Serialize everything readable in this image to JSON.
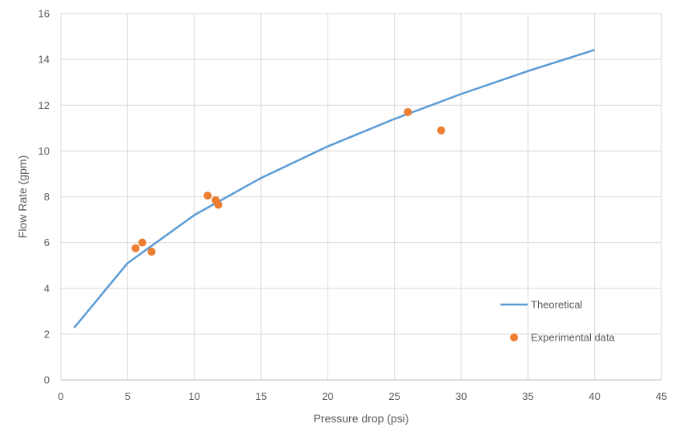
{
  "chart_data": {
    "type": "scatter",
    "title": "",
    "xlabel": "Pressure drop (psi)",
    "ylabel": "Flow Rate (gpm)",
    "xlim": [
      0,
      45
    ],
    "ylim": [
      0,
      16
    ],
    "xticks": [
      0,
      5,
      10,
      15,
      20,
      25,
      30,
      35,
      40,
      45
    ],
    "yticks": [
      0,
      2,
      4,
      6,
      8,
      10,
      12,
      14,
      16
    ],
    "grid": true,
    "legend_position": "bottom-right",
    "series": [
      {
        "name": "Theoretical",
        "kind": "line",
        "color": "#5b9bd5",
        "x": [
          1,
          5,
          10,
          15,
          20,
          25,
          30,
          35,
          40
        ],
        "y": [
          2.28,
          5.1,
          7.2,
          8.82,
          10.2,
          11.4,
          12.49,
          13.49,
          14.42
        ]
      },
      {
        "name": "Experimental data",
        "kind": "scatter",
        "color": "#ed7d31",
        "x": [
          5.6,
          6.1,
          6.8,
          11.0,
          11.6,
          11.8,
          26.0,
          28.5
        ],
        "y": [
          5.75,
          6.0,
          5.6,
          8.05,
          7.85,
          7.65,
          11.7,
          10.9
        ]
      }
    ]
  }
}
